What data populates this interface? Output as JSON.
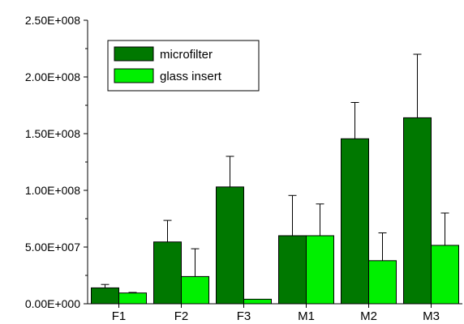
{
  "chart_data": {
    "type": "bar",
    "title": "",
    "xlabel": "",
    "ylabel": "",
    "categories": [
      "F1",
      "F2",
      "F3",
      "M1",
      "M2",
      "M3"
    ],
    "ylim": [
      0,
      250000000
    ],
    "yticks": [
      0,
      50000000,
      100000000,
      150000000,
      200000000,
      250000000
    ],
    "ytick_labels": [
      "0.00E+000",
      "5.00E+007",
      "1.00E+008",
      "1.50E+008",
      "2.00E+008",
      "2.50E+008"
    ],
    "legend_position": "top-left",
    "grid": false,
    "series": [
      {
        "name": "microfilter",
        "color": "#007800",
        "values": [
          14000000,
          54500000,
          103000000,
          60000000,
          145500000,
          164000000
        ],
        "errors": [
          3000000,
          19000000,
          27000000,
          35500000,
          32000000,
          56000000
        ]
      },
      {
        "name": "glass insert",
        "color": "#00f000",
        "values": [
          9500000,
          24000000,
          4000000,
          60000000,
          38000000,
          51500000
        ],
        "errors": [
          500000,
          24500000,
          0,
          28000000,
          24500000,
          28500000
        ]
      }
    ]
  }
}
